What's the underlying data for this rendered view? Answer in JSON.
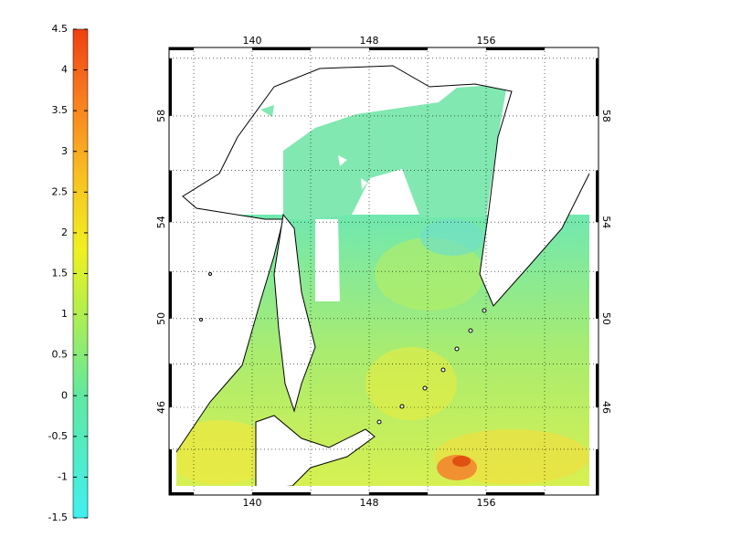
{
  "colorbar": {
    "range": [
      -1.5,
      4.5
    ],
    "ticks": [
      -1.5,
      -1,
      -0.5,
      0,
      0.5,
      1,
      1.5,
      2,
      2.5,
      3,
      3.5,
      4,
      4.5
    ]
  },
  "map": {
    "lon_labels": [
      140,
      148,
      156
    ],
    "lat_labels": [
      46,
      50,
      54,
      58
    ]
  }
}
